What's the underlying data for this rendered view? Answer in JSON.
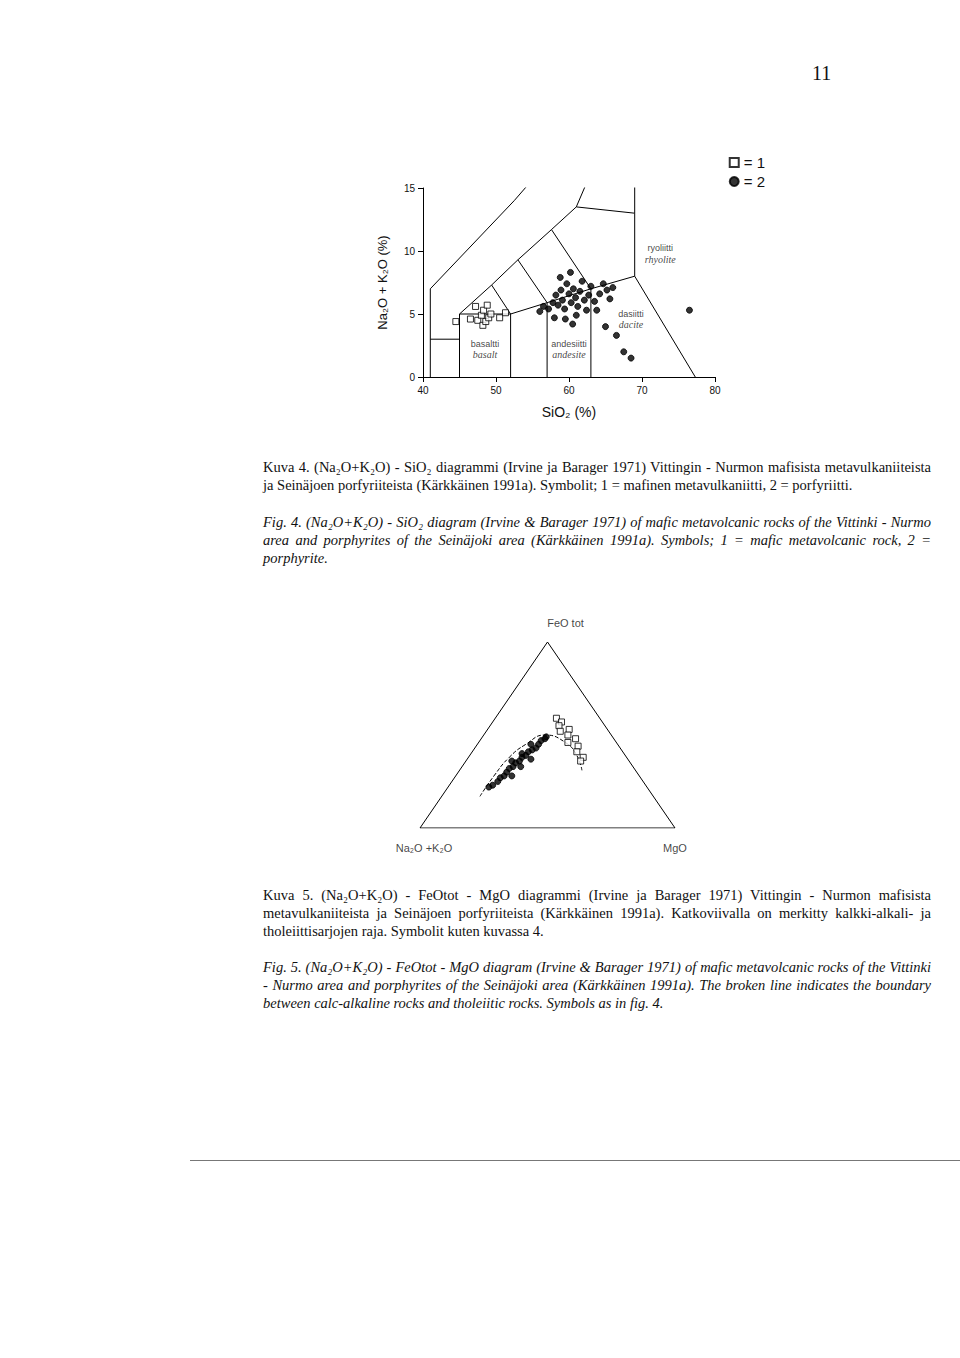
{
  "page_number": "11",
  "chart_data": [
    {
      "type": "scatter",
      "x_label": "SiO₂ (%)",
      "y_label": "Na₂O + K₂O (%)",
      "xlim": [
        40,
        80
      ],
      "xticks": [
        40,
        50,
        60,
        70,
        80
      ],
      "ylim": [
        0,
        15
      ],
      "yticks": [
        0,
        5,
        10,
        15
      ],
      "grid": false,
      "legend": "upper right",
      "series": [
        {
          "name": "= 1",
          "marker": "square",
          "color": "#000000",
          "values": [
            [
              44.5,
              4.4
            ],
            [
              46.5,
              4.6
            ],
            [
              47.2,
              5.6
            ],
            [
              47.5,
              4.5
            ],
            [
              48.0,
              4.9
            ],
            [
              48.2,
              4.1
            ],
            [
              48.3,
              5.3
            ],
            [
              48.6,
              4.4
            ],
            [
              48.8,
              5.7
            ],
            [
              49.0,
              4.7
            ],
            [
              49.3,
              5.0
            ],
            [
              50.5,
              4.7
            ],
            [
              51.3,
              5.1
            ]
          ]
        },
        {
          "name": "= 2",
          "marker": "circle",
          "color": "#000000",
          "values": [
            [
              56.0,
              5.2
            ],
            [
              56.5,
              5.6
            ],
            [
              57.2,
              5.4
            ],
            [
              57.8,
              5.9
            ],
            [
              58.0,
              4.7
            ],
            [
              58.2,
              6.5
            ],
            [
              58.5,
              5.7
            ],
            [
              58.8,
              7.9
            ],
            [
              58.9,
              6.9
            ],
            [
              59.1,
              6.1
            ],
            [
              59.4,
              5.4
            ],
            [
              59.5,
              4.6
            ],
            [
              59.7,
              7.4
            ],
            [
              60.0,
              6.6
            ],
            [
              60.2,
              8.3
            ],
            [
              60.3,
              5.9
            ],
            [
              60.5,
              4.2
            ],
            [
              60.6,
              7.0
            ],
            [
              60.9,
              6.3
            ],
            [
              61.0,
              4.9
            ],
            [
              61.2,
              5.6
            ],
            [
              61.5,
              6.8
            ],
            [
              61.8,
              7.6
            ],
            [
              62.1,
              6.1
            ],
            [
              62.4,
              5.3
            ],
            [
              62.7,
              6.5
            ],
            [
              63.0,
              7.2
            ],
            [
              63.5,
              6.0
            ],
            [
              63.8,
              5.3
            ],
            [
              64.2,
              6.6
            ],
            [
              64.7,
              7.4
            ],
            [
              65.0,
              4.0
            ],
            [
              65.2,
              6.9
            ],
            [
              65.6,
              6.2
            ],
            [
              66.0,
              7.1
            ],
            [
              66.5,
              3.3
            ],
            [
              67.5,
              2.0
            ],
            [
              68.5,
              1.5
            ],
            [
              76.5,
              5.3
            ]
          ]
        }
      ],
      "boundaries": [
        [
          [
            41,
            0
          ],
          [
            41,
            7
          ],
          [
            52.5,
            14
          ],
          [
            57,
            17
          ]
        ],
        [
          [
            41,
            3
          ],
          [
            45,
            3
          ]
        ],
        [
          [
            45,
            0
          ],
          [
            45,
            5
          ],
          [
            52,
            5
          ],
          [
            57,
            5.9
          ],
          [
            63,
            7
          ],
          [
            69,
            8
          ],
          [
            77.3,
            0
          ]
        ],
        [
          [
            45,
            5
          ],
          [
            49.4,
            7.3
          ],
          [
            53,
            9.3
          ],
          [
            57.6,
            11.7
          ],
          [
            61,
            13.5
          ],
          [
            63,
            16.2
          ]
        ],
        [
          [
            49.4,
            7.3
          ],
          [
            52,
            5
          ],
          [
            52,
            0
          ]
        ],
        [
          [
            53,
            9.3
          ],
          [
            57,
            5.9
          ],
          [
            57,
            0
          ]
        ],
        [
          [
            57.6,
            11.7
          ],
          [
            63,
            7
          ],
          [
            63,
            0
          ]
        ],
        [
          [
            61,
            13.5
          ],
          [
            69,
            13
          ],
          [
            69,
            8
          ]
        ],
        [
          [
            69,
            13
          ],
          [
            69,
            17
          ]
        ]
      ],
      "field_labels": [
        {
          "text": [
            "basaltti",
            "basalt"
          ],
          "x": 48.5,
          "y": 2.2
        },
        {
          "text": [
            "andesiitti",
            "andesite"
          ],
          "x": 60.0,
          "y": 2.2
        },
        {
          "text": [
            "dasiitti",
            "dacite"
          ],
          "x": 68.5,
          "y": 4.6
        },
        {
          "text": [
            "ryoliitti",
            "rhyolite"
          ],
          "x": 72.5,
          "y": 9.8
        }
      ]
    },
    {
      "type": "ternary",
      "vertex_labels": {
        "top": "FeO tot",
        "left": "Na₂O +K₂O",
        "right": "MgO"
      },
      "tick_labels": false,
      "series": [
        {
          "name": "= 1",
          "marker": "square",
          "color": "#000000",
          "values": [
            [
              17,
              59,
              24
            ],
            [
              16,
              57,
              27
            ],
            [
              18,
              55,
              27
            ],
            [
              15,
              53,
              32
            ],
            [
              19,
              52,
              29
            ],
            [
              17,
              50,
              33
            ],
            [
              15,
              48,
              37
            ],
            [
              19,
              46,
              35
            ],
            [
              16,
              44,
              40
            ],
            [
              18,
              41,
              41
            ],
            [
              17,
              38,
              45
            ],
            [
              19,
              36,
              45
            ]
          ]
        },
        {
          "name": "= 2",
          "marker": "circle",
          "color": "#000000",
          "values": [
            [
              62,
              22,
              16
            ],
            [
              60,
              23,
              17
            ],
            [
              57,
              25,
              18
            ],
            [
              55,
              27,
              18
            ],
            [
              53,
              28,
              19
            ],
            [
              51,
              30,
              19
            ],
            [
              49,
              32,
              19
            ],
            [
              47,
              33,
              20
            ],
            [
              45,
              35,
              20
            ],
            [
              43,
              36,
              21
            ],
            [
              41,
              38,
              21
            ],
            [
              39,
              39,
              22
            ],
            [
              37,
              41,
              22
            ],
            [
              35,
              42,
              23
            ],
            [
              33,
              43,
              24
            ],
            [
              31,
              45,
              24
            ],
            [
              29,
              47,
              24
            ],
            [
              27,
              48,
              25
            ],
            [
              26,
              49,
              25
            ],
            [
              50,
              28,
              22
            ],
            [
              44,
              33,
              23
            ],
            [
              38,
              37,
              25
            ],
            [
              46,
              36,
              18
            ],
            [
              40,
              40,
              20
            ],
            [
              34,
              45,
              21
            ]
          ]
        }
      ],
      "boundary": {
        "line_style": "dashed",
        "color": "#000000",
        "values": [
          [
            68,
            17,
            15
          ],
          [
            57,
            28,
            15
          ],
          [
            46,
            38,
            16
          ],
          [
            36,
            45,
            19
          ],
          [
            26,
            50,
            24
          ],
          [
            20,
            46,
            34
          ],
          [
            19,
            39,
            42
          ],
          [
            21,
            31,
            48
          ]
        ]
      }
    }
  ],
  "captions": [
    {
      "lang": "fi",
      "text": "Kuva 4. (Na₂O+K₂O) - SiO₂ diagrammi (Irvine ja Barager 1971) Vittingin - Nurmon mafisista metavulkaniiteista ja Seinäjoen porfyriiteista (Kärkkäinen 1991a). Symbolit; 1 = mafinen metavulkaniitti, 2 = porfyriitti."
    },
    {
      "lang": "en",
      "text": "Fig. 4. (Na₂O+K₂O) - SiO₂ diagram (Irvine & Barager 1971) of mafic metavolcanic rocks of the Vittinki - Nurmo area and porphyrites of the Seinäjoki area (Kärkkäinen 1991a). Symbols; 1 = mafic metavolcanic rock, 2 = porphyrite."
    },
    {
      "lang": "fi",
      "text": "Kuva 5. (Na₂O+K₂O) - FeOtot - MgO diagrammi (Irvine ja Barager 1971) Vittingin - Nurmon mafisista metavulkaniiteista ja Seinäjoen porfyriiteista (Kärkkäinen 1991a). Katkoviivalla on merkitty kalkki-alkali- ja tholeiittisarjojen raja. Symbolit kuten kuvassa 4."
    },
    {
      "lang": "en",
      "text": "Fig. 5. (Na₂O+K₂O) - FeOtot - MgO diagram (Irvine & Barager 1971) of mafic metavolcanic rocks of the Vittinki - Nurmo area and porphyrites of the Seinäjoki area (Kärkkäinen 1991a). The broken line indicates the boundary between calc-alkaline rocks and tholeiitic rocks. Symbols as in fig. 4."
    }
  ]
}
